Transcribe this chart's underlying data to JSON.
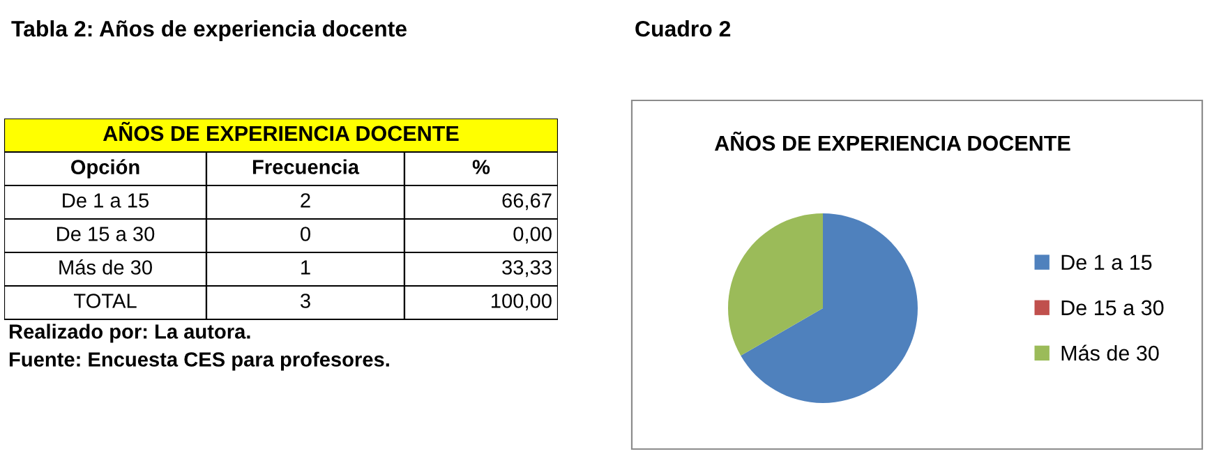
{
  "chart_data": [
    {
      "type": "other",
      "title": "Tabla 2: Años de experiencia docente",
      "subtitle": "AÑOS DE EXPERIENCIA DOCENTE",
      "xlabel": "Opción",
      "categories": [
        "De 1 a 15",
        "De 15 a 30",
        "Más de 30",
        "TOTAL"
      ],
      "annotations": [
        "Frecuencia",
        "%",
        "2",
        "66,67",
        "0",
        "0,00",
        "1",
        "33,33",
        "3",
        "100,00",
        "Realizado por: La autora.",
        "Fuente: Encuesta CES para profesores."
      ]
    },
    {
      "type": "pie",
      "title": "Cuadro 2",
      "subtitle": "AÑOS DE EXPERIENCIA DOCENTE",
      "categories": [
        "De 1 a 15",
        "De 15 a 30",
        "Más de 30"
      ],
      "values": [
        66.67,
        0,
        33.33
      ],
      "colors": [
        "#4f81bd",
        "#c0504d",
        "#9bbb59"
      ],
      "legend": "right"
    }
  ]
}
